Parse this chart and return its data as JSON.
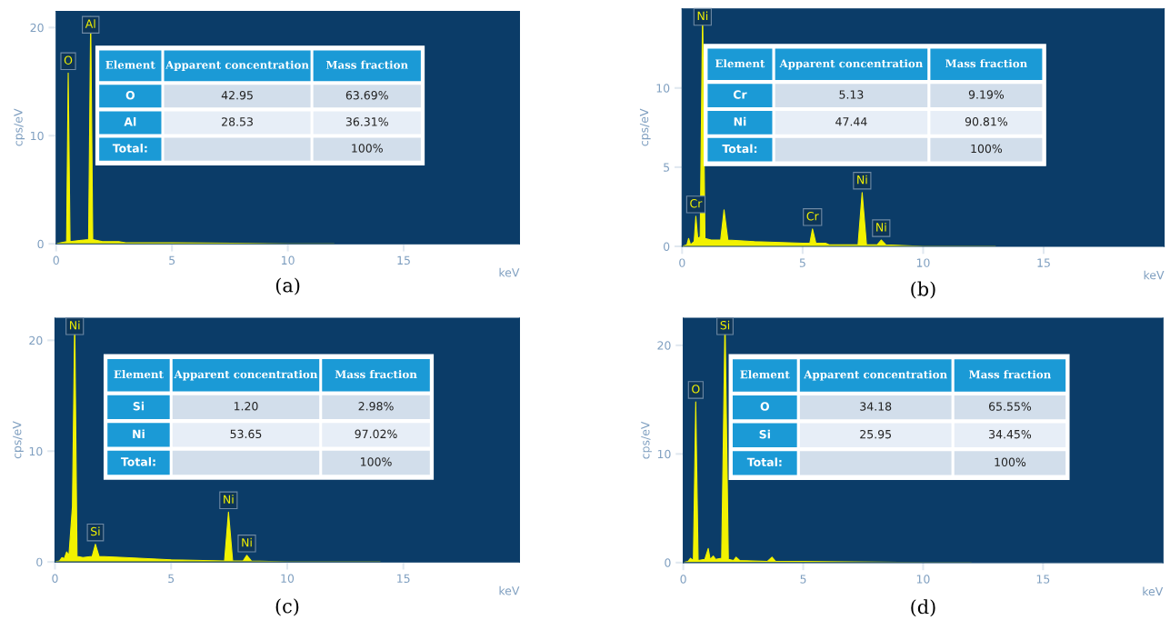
{
  "chart_data": [
    {
      "type": "area",
      "title": "(a)",
      "xlabel": "keV",
      "ylabel": "cps/eV",
      "xlim": [
        0,
        20
      ],
      "xticks": [
        0,
        5,
        10,
        15
      ],
      "ylim": [
        0,
        21.5
      ],
      "yticks": [
        0,
        10,
        20
      ],
      "grid": false,
      "x": [
        0,
        0.2,
        0.45,
        0.52,
        0.6,
        1.0,
        1.4,
        1.49,
        1.58,
        2.0,
        2.7,
        3.0,
        5.0,
        10.0,
        12.0
      ],
      "series": [
        {
          "color": "#f2f200",
          "values": [
            0,
            0.1,
            0.2,
            15.8,
            0.2,
            0.3,
            0.4,
            21,
            0.4,
            0.2,
            0.2,
            0.1,
            0.1,
            0,
            0
          ]
        }
      ],
      "annotations": [
        "Element",
        "Apparent concentration",
        "Mass fraction",
        "O",
        "42.95",
        "63.69%",
        "Al",
        "28.53",
        "36.31%",
        "Total:",
        "100%",
        {
          "text": "O",
          "x": 0.52,
          "y": 15.8
        },
        {
          "text": "Al",
          "x": 1.49,
          "y": 21
        }
      ]
    },
    {
      "type": "area",
      "title": "(b)",
      "xlabel": "keV",
      "ylabel": "cps/eV",
      "xlim": [
        0,
        20
      ],
      "xticks": [
        0,
        5,
        10,
        15
      ],
      "ylim": [
        0,
        15
      ],
      "yticks": [
        0,
        5,
        10
      ],
      "grid": false,
      "x": [
        0,
        0.2,
        0.27,
        0.35,
        0.5,
        0.57,
        0.65,
        0.75,
        0.85,
        0.95,
        1.2,
        1.6,
        1.74,
        1.9,
        3.0,
        5.0,
        5.3,
        5.41,
        5.55,
        5.95,
        6.1,
        7.3,
        7.47,
        7.65,
        8.1,
        8.26,
        8.45,
        10.0,
        13.0
      ],
      "series": [
        {
          "color": "#f2f200",
          "values": [
            0,
            0.1,
            0.5,
            0.1,
            0.3,
            1.9,
            0.5,
            0.6,
            15,
            0.5,
            0.4,
            0.4,
            2.3,
            0.4,
            0.3,
            0.2,
            0.2,
            1.1,
            0.2,
            0.2,
            0.1,
            0.1,
            3.4,
            0.1,
            0.1,
            0.4,
            0.1,
            0,
            0
          ]
        }
      ],
      "annotations": [
        "Element",
        "Apparent concentration",
        "Mass fraction",
        "Cr",
        "5.13",
        "9.19%",
        "Ni",
        "47.44",
        "90.81%",
        "Total:",
        "100%",
        {
          "text": "Ni",
          "x": 0.85,
          "y": 15
        },
        {
          "text": "Cr",
          "x": 0.57,
          "y": 1.9
        },
        {
          "text": "Cr",
          "x": 5.41,
          "y": 1.1
        },
        {
          "text": "Ni",
          "x": 7.47,
          "y": 3.4
        },
        {
          "text": "Ni",
          "x": 8.26,
          "y": 0.4
        }
      ]
    },
    {
      "type": "area",
      "title": "(c)",
      "xlabel": "keV",
      "ylabel": "cps/eV",
      "xlim": [
        0,
        20
      ],
      "xticks": [
        0,
        5,
        10,
        15
      ],
      "ylim": [
        0,
        22
      ],
      "yticks": [
        0,
        10,
        20
      ],
      "grid": false,
      "x": [
        0,
        0.2,
        0.3,
        0.4,
        0.5,
        0.6,
        0.75,
        0.85,
        0.95,
        1.2,
        1.6,
        1.74,
        1.9,
        3.0,
        5.0,
        7.3,
        7.47,
        7.65,
        8.1,
        8.26,
        8.45,
        10.0,
        14.0
      ],
      "series": [
        {
          "color": "#f2f200",
          "values": [
            0,
            0.1,
            0.4,
            0.3,
            0.9,
            0.6,
            5,
            22,
            0.5,
            0.4,
            0.5,
            1.6,
            0.5,
            0.4,
            0.2,
            0.1,
            4.5,
            0.1,
            0.1,
            0.6,
            0.1,
            0,
            0
          ]
        }
      ],
      "annotations": [
        "Element",
        "Apparent concentration",
        "Mass fraction",
        "Si",
        "1.20",
        "2.98%",
        "Ni",
        "53.65",
        "97.02%",
        "Total:",
        "100%",
        {
          "text": "Ni",
          "x": 0.85,
          "y": 22
        },
        {
          "text": "Si",
          "x": 1.74,
          "y": 1.6
        },
        {
          "text": "Ni",
          "x": 7.47,
          "y": 4.5
        },
        {
          "text": "Ni",
          "x": 8.26,
          "y": 0.6
        }
      ]
    },
    {
      "type": "area",
      "title": "(d)",
      "xlabel": "keV",
      "ylabel": "cps/eV",
      "xlim": [
        0,
        20
      ],
      "xticks": [
        0,
        5,
        10,
        15
      ],
      "ylim": [
        0,
        22.5
      ],
      "yticks": [
        0,
        10,
        20
      ],
      "grid": false,
      "x": [
        0,
        0.2,
        0.3,
        0.42,
        0.52,
        0.62,
        0.9,
        1.04,
        1.12,
        1.25,
        1.35,
        1.6,
        1.74,
        1.88,
        2.1,
        2.2,
        2.35,
        3.5,
        3.7,
        3.85,
        5.0,
        10.0,
        12.0
      ],
      "series": [
        {
          "color": "#f2f200",
          "values": [
            0,
            0.1,
            0.4,
            0.2,
            14.8,
            0.2,
            0.3,
            1.3,
            0.3,
            0.6,
            0.3,
            0.4,
            22.5,
            0.3,
            0.2,
            0.5,
            0.2,
            0.1,
            0.5,
            0.1,
            0.1,
            0,
            0
          ]
        }
      ],
      "annotations": [
        "Element",
        "Apparent concentration",
        "Mass fraction",
        "O",
        "34.18",
        "65.55%",
        "Si",
        "25.95",
        "34.45%",
        "Total:",
        "100%",
        {
          "text": "O",
          "x": 0.52,
          "y": 14.8
        },
        {
          "text": "Si",
          "x": 1.74,
          "y": 22.5
        }
      ]
    }
  ]
}
